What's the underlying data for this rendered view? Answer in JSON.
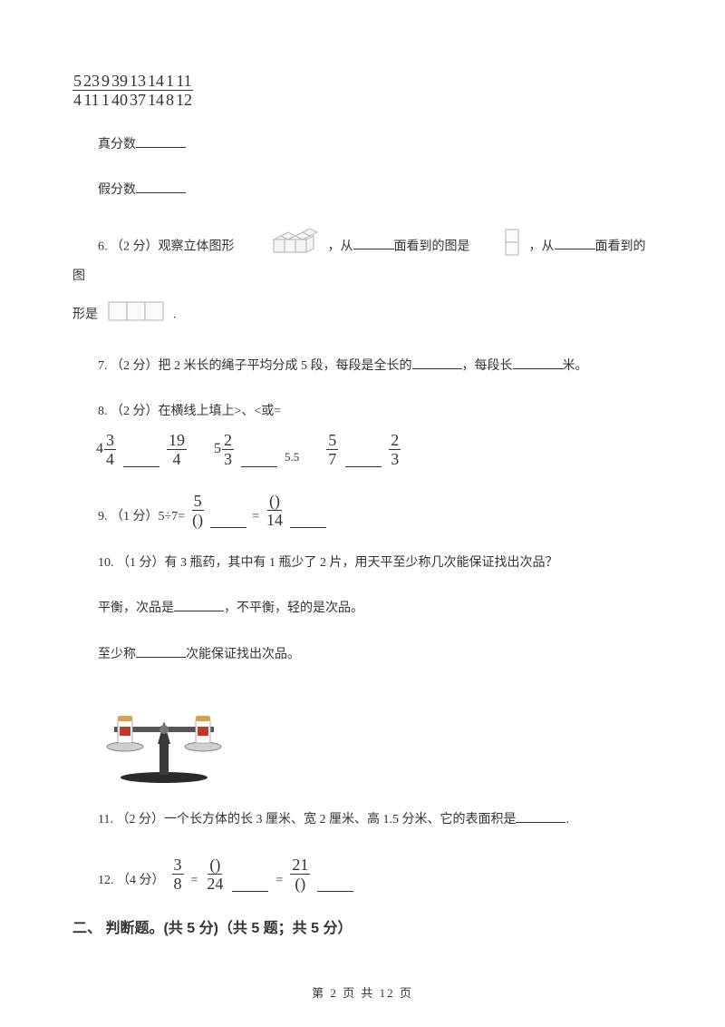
{
  "fractions": [
    {
      "n": "5",
      "d": "4"
    },
    {
      "n": "23",
      "d": "11"
    },
    {
      "n": "9",
      "d": "1"
    },
    {
      "n": "39",
      "d": "40"
    },
    {
      "n": "13",
      "d": "37"
    },
    {
      "n": "14",
      "d": "14"
    },
    {
      "n": "1",
      "d": "8"
    },
    {
      "n": "11",
      "d": "12"
    }
  ],
  "labels": {
    "proper": "真分数",
    "improper": "假分数"
  },
  "q6": {
    "prefix": "6. （2 分）观察立体图形",
    "mid1": "，从",
    "mid2": "面看到的图是",
    "mid3": "，从",
    "mid4": "面看到的图",
    "line2_prefix": "形是",
    "line2_suffix": "."
  },
  "q7": "7. （2 分）把 2 米长的绳子平均分成 5 段，每段是全长的",
  "q7_mid": "，每段长",
  "q7_end": "米。",
  "q8": "8. （2 分）在横线上填上>、<或=",
  "q8_items": {
    "a": {
      "whole": "4",
      "n": "3",
      "d": "4"
    },
    "b": {
      "n": "19",
      "d": "4"
    },
    "c": {
      "whole": "5",
      "n": "2",
      "d": "3"
    },
    "d_text": "5.5",
    "e": {
      "n": "5",
      "d": "7"
    },
    "f": {
      "n": "2",
      "d": "3"
    }
  },
  "q9": {
    "prefix": "9. （1 分）5÷7=",
    "f1": {
      "n": "5",
      "d": "()"
    },
    "eq": "=",
    "f2": {
      "n": "()",
      "d": "14"
    }
  },
  "q10": {
    "line1": "10. （1 分）有 3 瓶药，其中有 1 瓶少了 2 片，用天平至少称几次能保证找出次品？",
    "line2a": "平衡，次品是",
    "line2b": "，不平衡，轻的是次品。",
    "line3a": "至少称",
    "line3b": "次能保证找出次品。"
  },
  "q11": "11. （2 分）一个长方体的长 3 厘米、宽 2 厘米、高 1.5 分米、它的表面积是",
  "q11_end": ".",
  "q12": {
    "prefix": "12. （4 分）",
    "f1": {
      "n": "3",
      "d": "8"
    },
    "eq1": "=",
    "f2": {
      "n": "()",
      "d": "24"
    },
    "eq2": "=",
    "f3": {
      "n": "21",
      "d": "()"
    }
  },
  "section2": "二、 判断题。(共 5 分)（共 5 题；共 5 分）",
  "footer": "第 2 页 共 12 页",
  "shapes": {
    "cube_stroke": "#bdbdbd",
    "cube_fill": "#f5f5f5",
    "rect_stroke": "#bdbdbd",
    "rect_fill": "#fafafa"
  },
  "balance": {
    "base": "#2a2a2a",
    "arm": "#555555",
    "pan": "#cfcfcf",
    "jar_body": "#ffffff",
    "jar_lid": "#d9a24a",
    "label": "#c03a2b"
  }
}
